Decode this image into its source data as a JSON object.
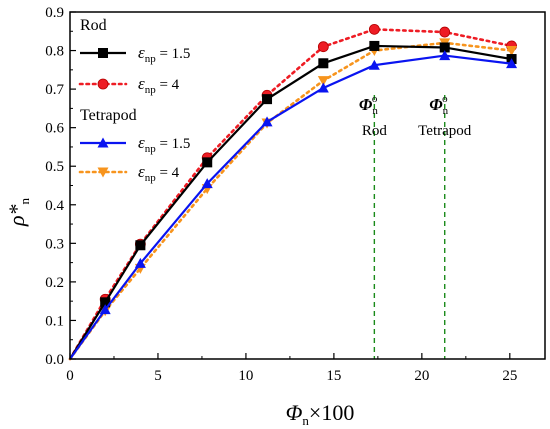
{
  "chart_data": {
    "type": "line",
    "xlabel": "Φn×100",
    "ylabel": "ρ*n",
    "xlim": [
      0,
      27
    ],
    "ylim": [
      0,
      0.9
    ],
    "xticks": [
      0,
      5,
      10,
      15,
      20,
      25
    ],
    "yticks": [
      0.0,
      0.1,
      0.2,
      0.3,
      0.4,
      0.5,
      0.6,
      0.7,
      0.8,
      0.9
    ],
    "grid": false,
    "legend_position": "top-left",
    "legend_groups": [
      "Rod",
      "Tetrapod"
    ],
    "series": [
      {
        "group": "Rod",
        "name": "εnp = 1.5",
        "color": "#000000",
        "line": "solid",
        "marker": "square",
        "x": [
          0,
          2.0,
          4.0,
          7.8,
          11.2,
          14.4,
          17.3,
          21.3,
          25.1
        ],
        "y": [
          0,
          0.147,
          0.295,
          0.51,
          0.674,
          0.767,
          0.812,
          0.808,
          0.778
        ]
      },
      {
        "group": "Rod",
        "name": "εnp = 4",
        "color": "#ee1c24",
        "line": "dotted",
        "marker": "circle",
        "x": [
          0,
          2.0,
          4.0,
          7.8,
          11.2,
          14.4,
          17.3,
          21.3,
          25.1
        ],
        "y": [
          0,
          0.155,
          0.298,
          0.522,
          0.684,
          0.81,
          0.855,
          0.848,
          0.812
        ]
      },
      {
        "group": "Tetrapod",
        "name": "εnp = 1.5",
        "color": "#0a14f0",
        "line": "solid",
        "marker": "triangle-up",
        "x": [
          0,
          2.0,
          4.0,
          7.8,
          11.2,
          14.4,
          17.3,
          21.3,
          25.1
        ],
        "y": [
          0,
          0.128,
          0.248,
          0.455,
          0.615,
          0.703,
          0.762,
          0.787,
          0.766
        ]
      },
      {
        "group": "Tetrapod",
        "name": "εnp = 4",
        "color": "#f7941d",
        "line": "dotted",
        "marker": "triangle-down",
        "x": [
          0,
          2.0,
          4.0,
          7.8,
          11.2,
          14.4,
          17.3,
          21.3,
          25.1
        ],
        "y": [
          0,
          0.125,
          0.235,
          0.442,
          0.612,
          0.722,
          0.8,
          0.82,
          0.8
        ]
      }
    ],
    "annotations": [
      {
        "symbol": "Φ",
        "sub": "n",
        "sup": "o",
        "label": "Rod",
        "x": 17.3
      },
      {
        "symbol": "Φ",
        "sub": "n",
        "sup": "o",
        "label": "Tetrapod",
        "x": 21.3
      }
    ],
    "annotation_line_color": "#1a8a1a"
  }
}
